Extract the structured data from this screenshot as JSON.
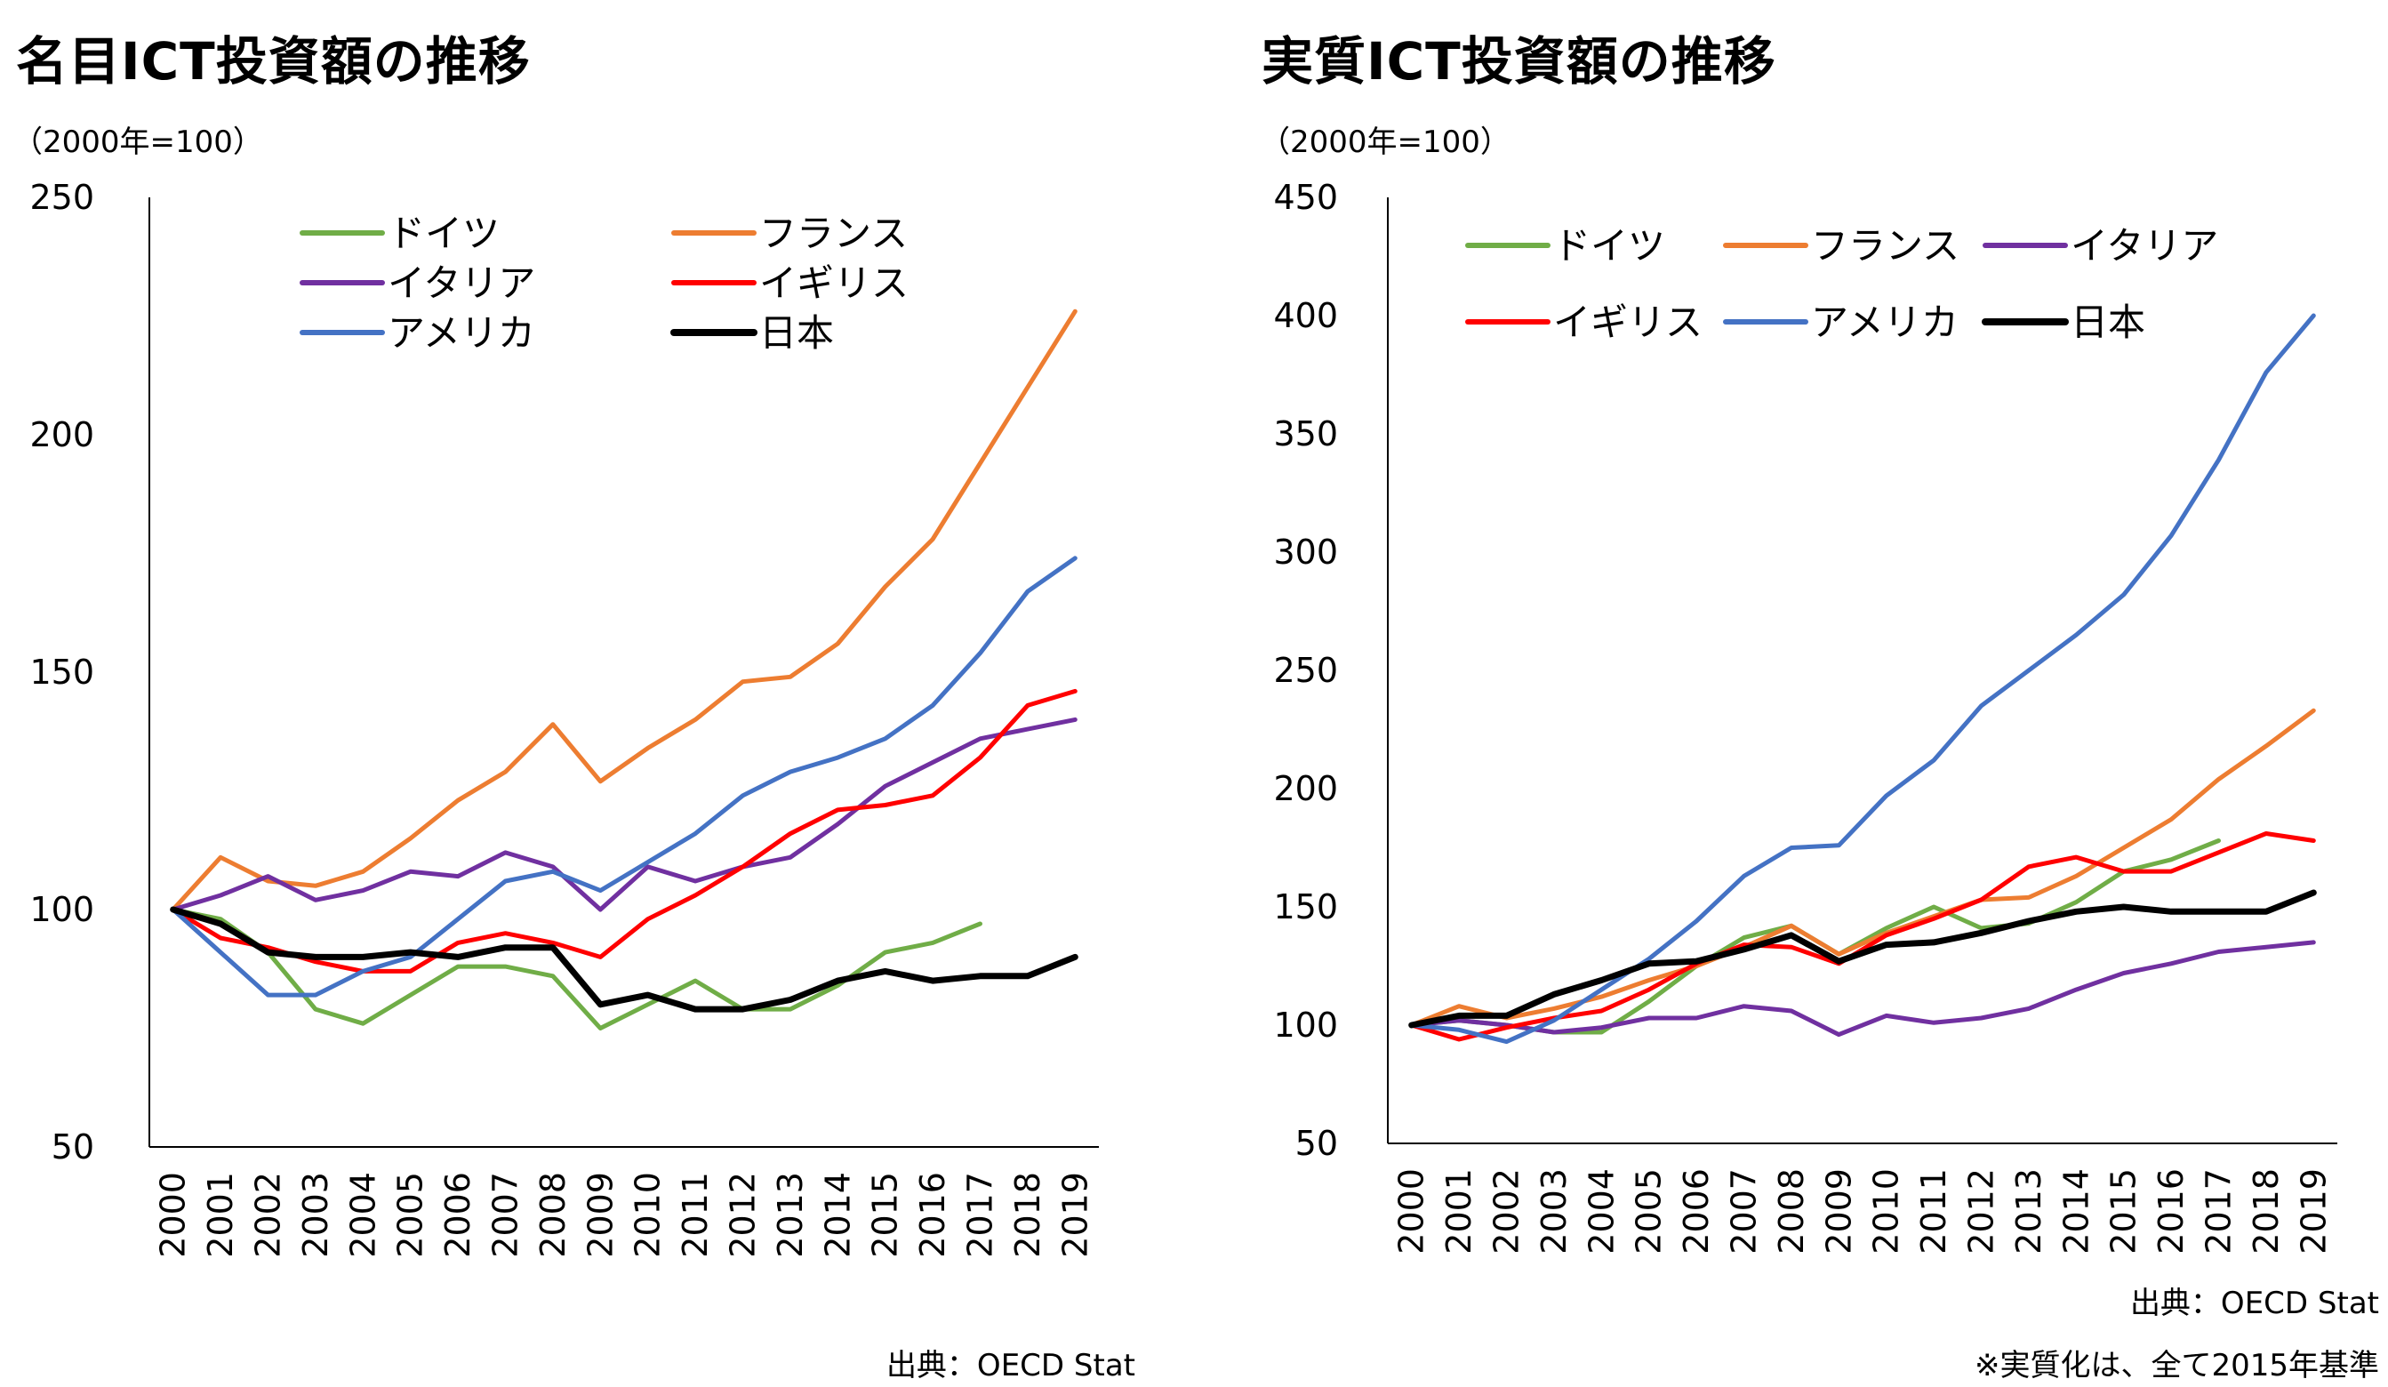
{
  "charts": {
    "left": {
      "title": "名目ICT投資額の推移",
      "unit": "（2000年=100）",
      "source": "出典：OECD Stat"
    },
    "right": {
      "title": "実質ICT投資額の推移",
      "unit": "（2000年=100）",
      "source": "出典：OECD Stat",
      "footnote": "※実質化は、全て2015年基準"
    }
  },
  "colors": {
    "germany": "#70ad47",
    "france": "#ed7d31",
    "italy": "#7030a0",
    "uk": "#ff0000",
    "usa": "#4472c4",
    "japan": "#000000"
  },
  "chart_data": [
    {
      "type": "line",
      "title": "名目ICT投資額の推移",
      "ylabel": "（2000年=100）",
      "xlabel": "",
      "ylim": [
        50,
        250
      ],
      "yticks": [
        50,
        100,
        150,
        200,
        250
      ],
      "legend_position": "top-left",
      "x": [
        "2000",
        "2001",
        "2002",
        "2003",
        "2004",
        "2005",
        "2006",
        "2007",
        "2008",
        "2009",
        "2010",
        "2011",
        "2012",
        "2013",
        "2014",
        "2015",
        "2016",
        "2017",
        "2018",
        "2019"
      ],
      "series": [
        {
          "name": "ドイツ",
          "color": "#70ad47",
          "values": [
            100,
            98,
            91,
            79,
            76,
            82,
            88,
            88,
            86,
            75,
            80,
            85,
            79,
            79,
            84,
            91,
            93,
            97,
            null,
            null
          ]
        },
        {
          "name": "フランス",
          "color": "#ed7d31",
          "values": [
            100,
            111,
            106,
            105,
            108,
            115,
            123,
            129,
            139,
            127,
            134,
            140,
            148,
            149,
            156,
            168,
            178,
            194,
            210,
            226
          ]
        },
        {
          "name": "イタリア",
          "color": "#7030a0",
          "values": [
            100,
            103,
            107,
            102,
            104,
            108,
            107,
            112,
            109,
            100,
            109,
            106,
            109,
            111,
            118,
            126,
            131,
            136,
            138,
            140
          ]
        },
        {
          "name": "イギリス",
          "color": "#ff0000",
          "values": [
            100,
            94,
            92,
            89,
            87,
            87,
            93,
            95,
            93,
            90,
            98,
            103,
            109,
            116,
            121,
            122,
            124,
            132,
            143,
            146
          ]
        },
        {
          "name": "アメリカ",
          "color": "#4472c4",
          "values": [
            100,
            91,
            82,
            82,
            87,
            90,
            98,
            106,
            108,
            104,
            110,
            116,
            124,
            129,
            132,
            136,
            143,
            154,
            167,
            174
          ]
        },
        {
          "name": "日本",
          "color": "#000000",
          "values": [
            100,
            97,
            91,
            90,
            90,
            91,
            90,
            92,
            92,
            80,
            82,
            79,
            79,
            81,
            85,
            87,
            85,
            86,
            86,
            90
          ]
        }
      ]
    },
    {
      "type": "line",
      "title": "実質ICT投資額の推移",
      "ylabel": "（2000年=100）",
      "xlabel": "",
      "ylim": [
        50,
        450
      ],
      "yticks": [
        50,
        100,
        150,
        200,
        250,
        300,
        350,
        400,
        450
      ],
      "legend_position": "top-left",
      "x": [
        "2000",
        "2001",
        "2002",
        "2003",
        "2004",
        "2005",
        "2006",
        "2007",
        "2008",
        "2009",
        "2010",
        "2011",
        "2012",
        "2013",
        "2014",
        "2015",
        "2016",
        "2017",
        "2018",
        "2019"
      ],
      "series": [
        {
          "name": "ドイツ",
          "color": "#70ad47",
          "values": [
            100,
            102,
            100,
            97,
            97,
            110,
            125,
            137,
            142,
            130,
            141,
            150,
            141,
            143,
            152,
            165,
            170,
            178,
            null,
            null
          ]
        },
        {
          "name": "フランス",
          "color": "#ed7d31",
          "values": [
            100,
            108,
            103,
            107,
            112,
            119,
            125,
            133,
            142,
            130,
            139,
            146,
            153,
            154,
            163,
            175,
            187,
            204,
            218,
            233
          ]
        },
        {
          "name": "イタリア",
          "color": "#7030a0",
          "values": [
            100,
            102,
            100,
            97,
            99,
            103,
            103,
            108,
            106,
            96,
            104,
            101,
            103,
            107,
            115,
            122,
            126,
            131,
            133,
            135
          ]
        },
        {
          "name": "イギリス",
          "color": "#ff0000",
          "values": [
            100,
            94,
            99,
            103,
            106,
            115,
            126,
            134,
            133,
            126,
            138,
            145,
            153,
            167,
            171,
            165,
            165,
            173,
            181,
            178
          ]
        },
        {
          "name": "アメリカ",
          "color": "#4472c4",
          "values": [
            100,
            98,
            93,
            102,
            115,
            128,
            144,
            163,
            175,
            176,
            197,
            212,
            235,
            250,
            265,
            282,
            307,
            339,
            376,
            400
          ]
        },
        {
          "name": "日本",
          "color": "#000000",
          "values": [
            100,
            104,
            104,
            113,
            119,
            126,
            127,
            132,
            138,
            127,
            134,
            135,
            139,
            144,
            148,
            150,
            148,
            148,
            148,
            156
          ]
        }
      ]
    }
  ]
}
